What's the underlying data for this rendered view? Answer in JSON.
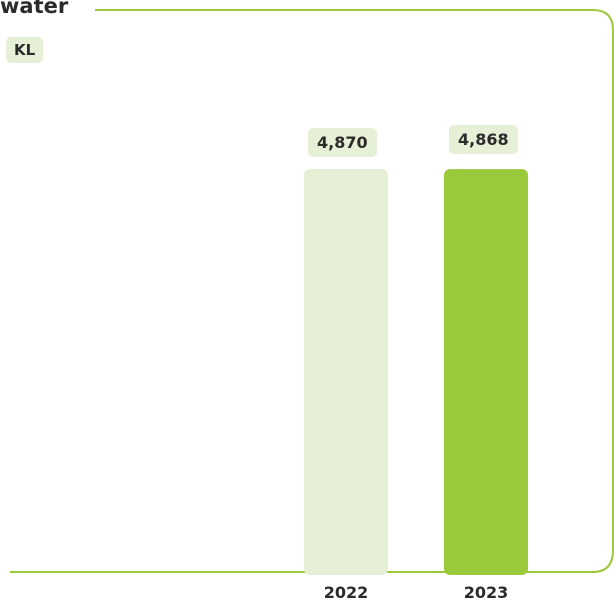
{
  "chart_data": {
    "type": "bar",
    "title": "water",
    "unit": "KL",
    "categories": [
      "2022",
      "2023"
    ],
    "values": [
      4870,
      4868
    ],
    "value_labels": [
      "4,870",
      "4,868"
    ],
    "bar_colors": [
      "#e6f0d6",
      "#9aca3c"
    ],
    "frame_color": "#9aca3c",
    "xlabel": "",
    "ylabel": "",
    "ylim": [
      0,
      4870
    ],
    "grid": false,
    "legend": "none"
  }
}
